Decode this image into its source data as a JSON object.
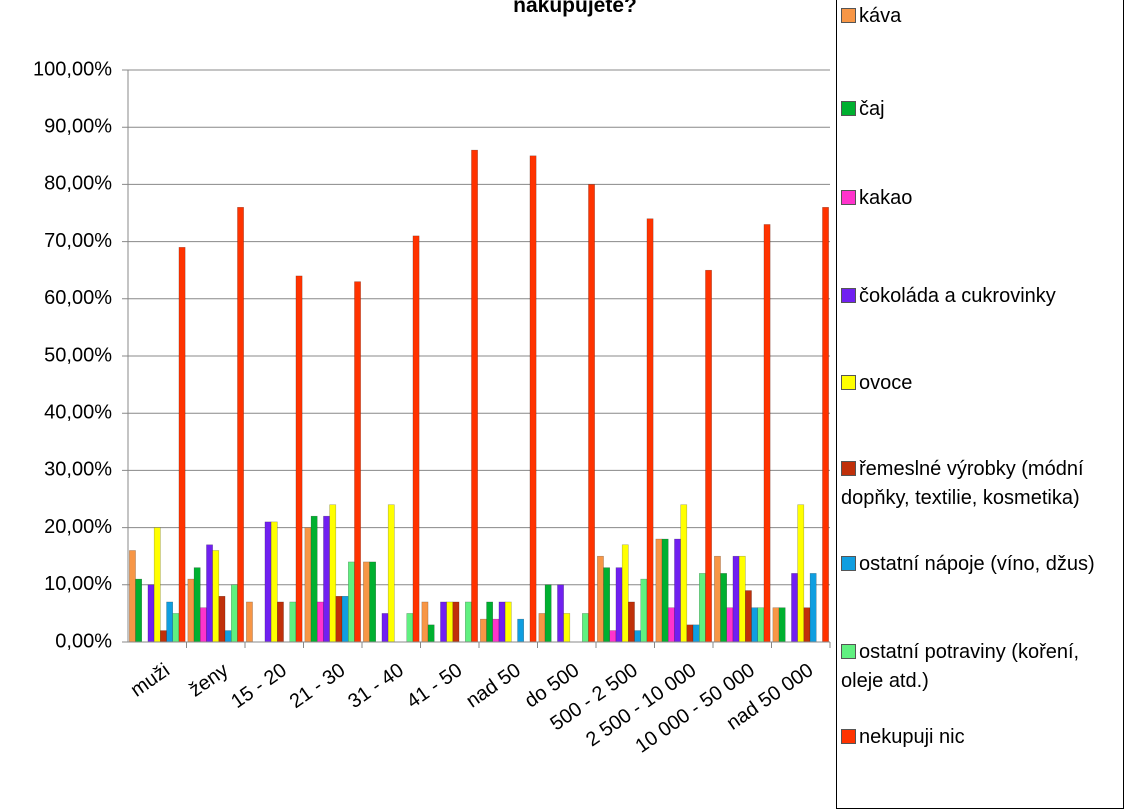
{
  "chart_data": {
    "type": "bar",
    "title": "nakupujete?",
    "categories": [
      "muži",
      "ženy",
      "15 - 20",
      "21 - 30",
      "31 - 40",
      "41 - 50",
      "nad 50",
      "do 500",
      "500 - 2 500",
      "2 500 - 10 000",
      "10 000 - 50 000",
      "nad 50 000"
    ],
    "series": [
      {
        "name": "káva",
        "color": "#f79646",
        "values": [
          16,
          11,
          7,
          20,
          14,
          7,
          4,
          5,
          15,
          18,
          15,
          6
        ]
      },
      {
        "name": "čaj",
        "color": "#00b030",
        "values": [
          11,
          13,
          0,
          22,
          14,
          3,
          7,
          10,
          13,
          18,
          12,
          6
        ]
      },
      {
        "name": "kakao",
        "color": "#ff33cc",
        "values": [
          0,
          6,
          0,
          7,
          0,
          0,
          4,
          0,
          2,
          6,
          6,
          0
        ]
      },
      {
        "name": "čokoláda a cukrovinky",
        "color": "#7020f0",
        "values": [
          10,
          17,
          21,
          22,
          5,
          7,
          7,
          10,
          13,
          18,
          15,
          12
        ]
      },
      {
        "name": "ovoce",
        "color": "#ffff00",
        "values": [
          20,
          16,
          21,
          24,
          24,
          7,
          7,
          5,
          17,
          24,
          15,
          24
        ]
      },
      {
        "name": "řemeslné výrobky (módní dopňky, textilie, kosmetika)",
        "color": "#c0300a",
        "values": [
          2,
          8,
          7,
          8,
          0,
          7,
          0,
          0,
          7,
          3,
          9,
          6
        ]
      },
      {
        "name": "ostatní nápoje (víno, džus)",
        "color": "#109ee0",
        "values": [
          7,
          2,
          0,
          8,
          0,
          0,
          4,
          0,
          2,
          3,
          6,
          12
        ]
      },
      {
        "name": "ostatní potraviny (koření, oleje atd.)",
        "color": "#60f080",
        "values": [
          5,
          10,
          7,
          14,
          5,
          7,
          0,
          5,
          11,
          12,
          6,
          0
        ]
      },
      {
        "name": "nekupuji nic",
        "color": "#ff3300",
        "values": [
          69,
          76,
          64,
          63,
          71,
          86,
          85,
          80,
          74,
          65,
          73,
          76
        ]
      }
    ],
    "ylim": [
      0,
      100
    ],
    "yticks": [
      {
        "value": 0,
        "label": "0,00%"
      },
      {
        "value": 10,
        "label": "10,00%"
      },
      {
        "value": 20,
        "label": "20,00%"
      },
      {
        "value": 30,
        "label": "30,00%"
      },
      {
        "value": 40,
        "label": "40,00%"
      },
      {
        "value": 50,
        "label": "50,00%"
      },
      {
        "value": 60,
        "label": "60,00%"
      },
      {
        "value": 70,
        "label": "70,00%"
      },
      {
        "value": 80,
        "label": "80,00%"
      },
      {
        "value": 90,
        "label": "90,00%"
      },
      {
        "value": 100,
        "label": "100,00%"
      }
    ],
    "grid": true
  }
}
